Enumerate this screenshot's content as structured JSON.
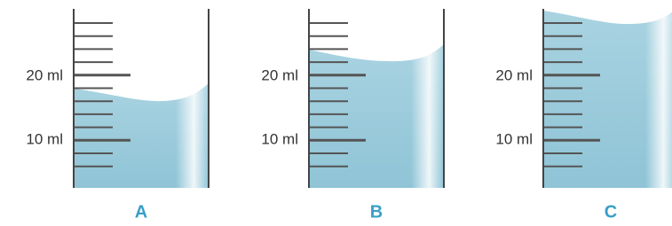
{
  "cylinders": [
    {
      "label": "A",
      "scale": [
        "20 ml",
        "10 ml"
      ]
    },
    {
      "label": "B",
      "scale": [
        "20 ml",
        "10 ml"
      ]
    },
    {
      "label": "C",
      "scale": [
        "20 ml",
        "10 ml"
      ]
    }
  ]
}
